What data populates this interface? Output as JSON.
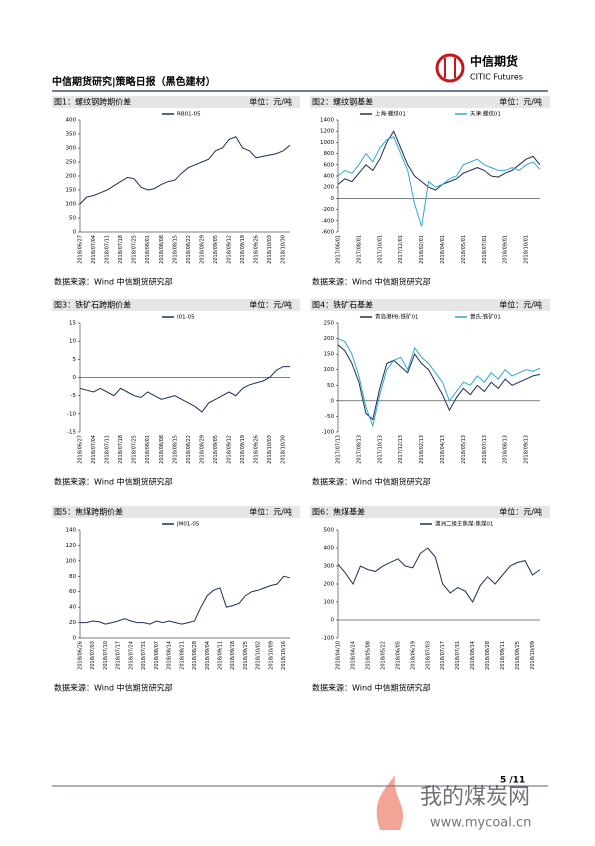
{
  "header": {
    "title": "中信期货研究|策略日报（黑色建材）",
    "logo": "中信期货",
    "logo_en": "CITIC Futures"
  },
  "page_number": "5 /11",
  "watermark": {
    "name": "我的煤炭网",
    "url": "www.mycoal.cn"
  },
  "chart_data": [
    {
      "type": "line",
      "title": "图1：螺纹钢跨期价差",
      "unit": "单位：元/吨",
      "source": "数据来源：Wind  中信期货研究部",
      "categories": [
        "2018/06/27",
        null,
        "2018/07/04",
        null,
        "2018/07/11",
        null,
        "2018/07/18",
        null,
        "2018/07/25",
        null,
        "2018/08/01",
        null,
        "2018/08/08",
        null,
        "2018/08/15",
        null,
        "2018/08/22",
        null,
        "2018/08/29",
        null,
        "2018/09/05",
        null,
        "2018/09/12",
        null,
        "2018/09/19",
        null,
        "2018/09/26",
        null,
        "2018/10/03",
        null,
        "2018/10/30",
        null
      ],
      "series": [
        {
          "name": "RB01-05",
          "color": "#1f2d5c",
          "values": [
            100,
            125,
            130,
            140,
            150,
            165,
            180,
            195,
            190,
            160,
            150,
            155,
            170,
            180,
            185,
            210,
            230,
            240,
            250,
            260,
            290,
            300,
            330,
            340,
            300,
            290,
            265,
            270,
            275,
            280,
            290,
            310
          ]
        }
      ],
      "ylim": [
        0,
        400
      ],
      "yticks": [
        0,
        50,
        100,
        150,
        200,
        250,
        300,
        350,
        400
      ]
    },
    {
      "type": "line",
      "title": "图2：螺纹钢基差",
      "unit": "单位：元/吨",
      "source": "数据来源：Wind  中信期货研究部",
      "categories": [
        "2017/06/01",
        null,
        null,
        "2017/08/01",
        null,
        null,
        "2017/10/01",
        null,
        null,
        "2017/12/01",
        null,
        null,
        "2018/02/01",
        null,
        null,
        "2018/04/01",
        null,
        null,
        "2018/05/01",
        null,
        null,
        "2018/07/01",
        null,
        null,
        "2018/09/01",
        null,
        null,
        "2018/10/01",
        null,
        null
      ],
      "series": [
        {
          "name": "上海:螺纹01",
          "color": "#1f2d5c",
          "values": [
            250,
            350,
            300,
            450,
            600,
            500,
            700,
            1000,
            1200,
            900,
            600,
            400,
            300,
            200,
            150,
            250,
            300,
            350,
            450,
            500,
            550,
            500,
            400,
            380,
            450,
            500,
            600,
            700,
            750,
            600
          ]
        },
        {
          "name": "天津:螺纹01",
          "color": "#2ea7d8",
          "values": [
            400,
            500,
            450,
            600,
            800,
            650,
            900,
            1050,
            1100,
            800,
            500,
            -100,
            -500,
            300,
            200,
            250,
            350,
            400,
            600,
            650,
            700,
            600,
            550,
            500,
            500,
            550,
            500,
            600,
            650,
            520
          ]
        }
      ],
      "ylim": [
        -600,
        1400
      ],
      "yticks": [
        -600,
        -400,
        -200,
        0,
        200,
        400,
        600,
        800,
        1000,
        1200,
        1400
      ]
    },
    {
      "type": "line",
      "title": "图3：铁矿石跨期价差",
      "unit": "单位：元/吨",
      "source": "数据来源：Wind  中信期货研究部",
      "categories": [
        "2018/06/27",
        null,
        "2018/07/04",
        null,
        "2018/07/11",
        null,
        "2018/07/18",
        null,
        "2018/07/25",
        null,
        "2018/08/01",
        null,
        "2018/08/08",
        null,
        "2018/08/15",
        null,
        "2018/08/22",
        null,
        "2018/08/29",
        null,
        "2018/09/05",
        null,
        "2018/09/12",
        null,
        "2018/09/19",
        null,
        "2018/09/26",
        null,
        "2018/10/03",
        null,
        "2018/10/30",
        null
      ],
      "series": [
        {
          "name": "I01-05",
          "color": "#1f2d5c",
          "values": [
            -3,
            -3.5,
            -4,
            -3,
            -4,
            -5,
            -3,
            -4,
            -5,
            -5.5,
            -4,
            -5,
            -6,
            -5.5,
            -5,
            -6,
            -7,
            -8,
            -9.5,
            -7,
            -6,
            -5,
            -4,
            -5,
            -3,
            -2,
            -1.5,
            -1,
            0,
            2,
            3,
            3
          ]
        }
      ],
      "ylim": [
        -15,
        15
      ],
      "yticks": [
        -15,
        -10,
        -5,
        0,
        5,
        10,
        15
      ]
    },
    {
      "type": "line",
      "title": "图4：铁矿石基差",
      "unit": "单位：元/吨",
      "source": "数据来源：Wind  中信期货研究部",
      "categories": [
        "2017/07/13",
        null,
        null,
        "2017/08/13",
        null,
        null,
        "2017/10/13",
        null,
        null,
        "2017/12/13",
        null,
        null,
        "2018/02/13",
        null,
        null,
        "2018/04/13",
        null,
        null,
        "2018/05/13",
        null,
        null,
        "2018/07/13",
        null,
        null,
        "2018/08/13",
        null,
        null,
        "2018/09/13",
        null,
        null
      ],
      "series": [
        {
          "name": "青岛港PB:铁矿01",
          "color": "#1f2d5c",
          "values": [
            180,
            160,
            120,
            60,
            -40,
            -60,
            40,
            120,
            130,
            110,
            90,
            150,
            120,
            100,
            60,
            20,
            -30,
            10,
            40,
            20,
            50,
            30,
            60,
            40,
            70,
            50,
            60,
            70,
            80,
            85
          ]
        },
        {
          "name": "普氏:铁矿01",
          "color": "#2ea7d8",
          "values": [
            200,
            190,
            150,
            80,
            -20,
            -80,
            20,
            100,
            130,
            140,
            100,
            170,
            140,
            120,
            90,
            60,
            0,
            30,
            60,
            50,
            80,
            60,
            90,
            70,
            100,
            80,
            90,
            100,
            95,
            105
          ]
        }
      ],
      "ylim": [
        -100,
        250
      ],
      "yticks": [
        -100,
        -50,
        0,
        50,
        100,
        150,
        200,
        250
      ]
    },
    {
      "type": "line",
      "title": "图5：焦煤跨期价差",
      "unit": "单位：元/吨",
      "source": "数据来源：Wind  中信期货研究部",
      "categories": [
        "2018/06/26",
        null,
        "2018/07/03",
        null,
        "2018/07/10",
        null,
        "2018/07/17",
        null,
        "2018/07/24",
        null,
        "2018/07/31",
        null,
        "2018/08/07",
        null,
        "2018/08/14",
        null,
        "2018/08/21",
        null,
        "2018/08/28",
        null,
        "2018/09/04",
        null,
        "2018/09/11",
        null,
        "2018/09/18",
        null,
        "2018/09/25",
        null,
        "2018/10/02",
        null,
        "2018/10/09",
        null,
        "2018/10/16",
        null
      ],
      "series": [
        {
          "name": "JM01-05",
          "color": "#1f2d5c",
          "values": [
            20,
            20,
            22,
            21,
            18,
            20,
            22,
            25,
            22,
            20,
            20,
            18,
            22,
            20,
            22,
            20,
            18,
            20,
            22,
            40,
            55,
            62,
            65,
            40,
            42,
            45,
            55,
            60,
            62,
            65,
            68,
            70,
            80,
            78
          ]
        }
      ],
      "ylim": [
        0,
        140
      ],
      "yticks": [
        0,
        20,
        40,
        60,
        80,
        100,
        120,
        140
      ]
    },
    {
      "type": "line",
      "title": "图6：焦煤基差",
      "unit": "单位：元/吨",
      "source": "数据来源：Wind  中信期货研究部",
      "categories": [
        "2018/04/10",
        null,
        "2018/04/24",
        null,
        "2018/05/08",
        null,
        "2018/05/22",
        null,
        "2018/06/05",
        null,
        "2018/06/19",
        null,
        "2018/07/03",
        null,
        "2018/07/17",
        null,
        "2018/07/31",
        null,
        "2018/08/14",
        null,
        "2018/08/28",
        null,
        "2018/09/11",
        null,
        "2018/09/25",
        null,
        "2018/10/09",
        null
      ],
      "series": [
        {
          "name": "澳洲二级主焦煤:焦煤01",
          "color": "#1f2d5c",
          "values": [
            310,
            260,
            200,
            300,
            280,
            270,
            300,
            320,
            340,
            300,
            290,
            370,
            400,
            350,
            200,
            150,
            180,
            160,
            100,
            190,
            240,
            200,
            250,
            300,
            320,
            330,
            250,
            280
          ]
        }
      ],
      "ylim": [
        -100,
        500
      ],
      "yticks": [
        -100,
        0,
        100,
        200,
        300,
        400,
        500
      ]
    }
  ]
}
